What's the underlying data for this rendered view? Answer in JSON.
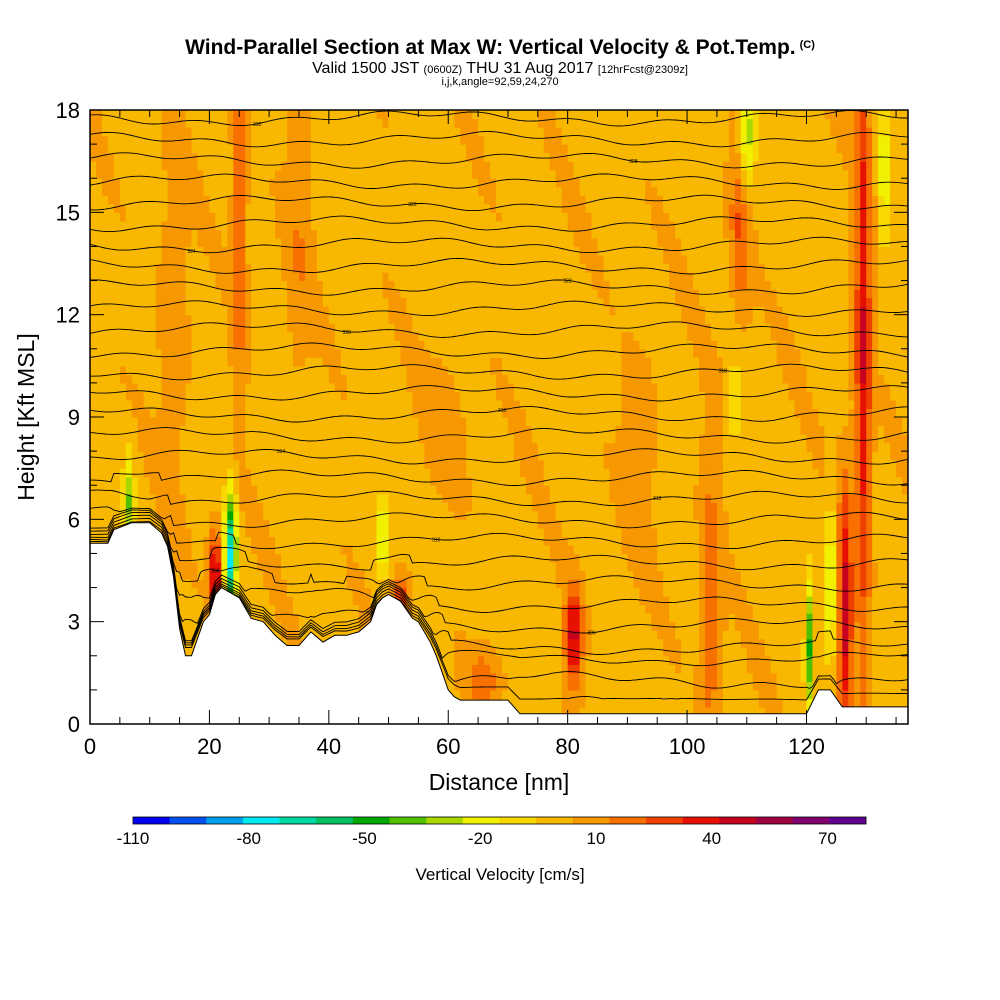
{
  "title": {
    "main": "Wind-Parallel Section at Max W: Vertical Velocity & Pot.Temp.",
    "copyright": "(C)",
    "valid_prefix": "Valid 1500 JST",
    "valid_utc": "(0600Z)",
    "valid_date": "THU 31 Aug 2017",
    "forecast": "[12hrFcst@2309z]",
    "indices": "i,j,k,angle=92,59,24,270"
  },
  "chart_data": {
    "type": "heatmap",
    "xlabel": "Distance [nm]",
    "ylabel": "Height [Kft MSL]",
    "xlim": [
      0,
      137
    ],
    "ylim": [
      0,
      18
    ],
    "x_ticks": [
      0,
      20,
      40,
      60,
      80,
      100,
      120
    ],
    "y_ticks": [
      0,
      3,
      6,
      9,
      12,
      15,
      18
    ],
    "colorbar": {
      "title": "Vertical Velocity [cm/s]",
      "tick_labels": [
        "-110",
        "-80",
        "-50",
        "-20",
        "10",
        "40",
        "70"
      ],
      "tick_values": [
        -110,
        -80,
        -50,
        -20,
        10,
        40,
        70
      ],
      "range": [
        -110,
        80
      ],
      "colors": [
        "#0000f0",
        "#0050f0",
        "#00a0f0",
        "#00e8f0",
        "#00d8a0",
        "#00c060",
        "#00a800",
        "#50c000",
        "#a8d800",
        "#f0f000",
        "#f8d800",
        "#f8b800",
        "#f89800",
        "#f87000",
        "#f04000",
        "#e81000",
        "#c80020",
        "#a00040",
        "#800070",
        "#600090"
      ]
    },
    "terrain_profile": [
      [
        0,
        5.3
      ],
      [
        3,
        5.3
      ],
      [
        4,
        5.7
      ],
      [
        7,
        5.9
      ],
      [
        10,
        5.9
      ],
      [
        12,
        5.6
      ],
      [
        13,
        5.2
      ],
      [
        14,
        4.3
      ],
      [
        15,
        2.8
      ],
      [
        16,
        2.0
      ],
      [
        17,
        2.0
      ],
      [
        18,
        2.5
      ],
      [
        19,
        3.0
      ],
      [
        20,
        3.2
      ],
      [
        21,
        3.8
      ],
      [
        22,
        4.0
      ],
      [
        23,
        3.9
      ],
      [
        25,
        3.7
      ],
      [
        27,
        3.1
      ],
      [
        29,
        3.0
      ],
      [
        31,
        2.6
      ],
      [
        33,
        2.3
      ],
      [
        35,
        2.3
      ],
      [
        37,
        2.7
      ],
      [
        39,
        2.4
      ],
      [
        41,
        2.6
      ],
      [
        43,
        2.6
      ],
      [
        45,
        2.7
      ],
      [
        47,
        3.0
      ],
      [
        48,
        3.5
      ],
      [
        49,
        3.7
      ],
      [
        50,
        3.8
      ],
      [
        52,
        3.6
      ],
      [
        54,
        3.1
      ],
      [
        55,
        3.0
      ],
      [
        57,
        2.4
      ],
      [
        58,
        2.0
      ],
      [
        59,
        1.5
      ],
      [
        60,
        1.0
      ],
      [
        61,
        0.8
      ],
      [
        62,
        0.7
      ],
      [
        70,
        0.7
      ],
      [
        72,
        0.3
      ],
      [
        120,
        0.3
      ],
      [
        122,
        1.0
      ],
      [
        124,
        1.0
      ],
      [
        126,
        0.5
      ],
      [
        137,
        0.5
      ]
    ],
    "potential_temperature": {
      "contour_levels_K": [
        302,
        303,
        304,
        305,
        306,
        307,
        308,
        309,
        310,
        311,
        312,
        313,
        314,
        315,
        316,
        317,
        318,
        319,
        320,
        321,
        322,
        323,
        324,
        325,
        326,
        327,
        328,
        329,
        330
      ],
      "labeled_levels": [
        "302",
        "304",
        "306",
        "308",
        "310",
        "312",
        "314",
        "316",
        "318",
        "320",
        "322",
        "324",
        "326",
        "328",
        "330"
      ]
    }
  }
}
